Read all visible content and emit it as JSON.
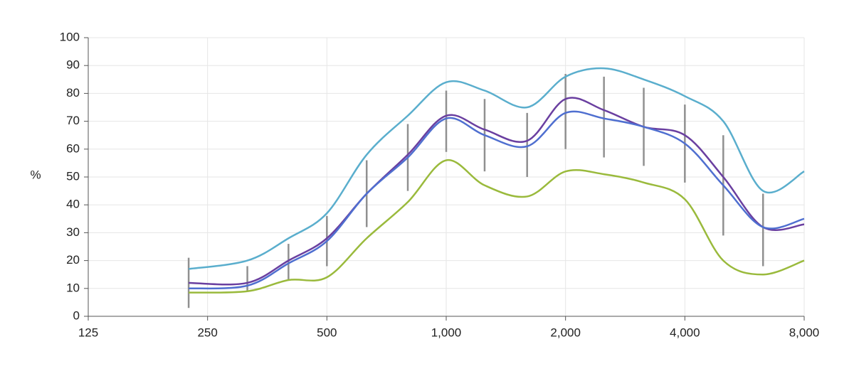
{
  "chart_data": {
    "type": "line",
    "y_label": "%",
    "x_scale": "log",
    "grid": true,
    "xlim": [
      125,
      8000
    ],
    "xticks": [
      125,
      250,
      500,
      {
        "value": 1000,
        "label": "1,000"
      },
      {
        "value": 2000,
        "label": "2,000"
      },
      {
        "value": 4000,
        "label": "4,000"
      },
      {
        "value": 8000,
        "label": "8,000"
      }
    ],
    "ylim": [
      0,
      100
    ],
    "yticks": [
      0,
      10,
      20,
      30,
      40,
      50,
      60,
      70,
      80,
      90,
      100
    ],
    "x": [
      224,
      315,
      400,
      500,
      630,
      800,
      1000,
      1250,
      1600,
      2000,
      2500,
      3150,
      4000,
      5000,
      6300,
      8000
    ],
    "series": [
      {
        "color": "#5aaecd",
        "values": [
          17,
          20,
          28,
          37,
          58,
          72,
          84,
          81,
          75,
          86,
          89,
          85,
          79,
          70,
          45,
          52
        ]
      },
      {
        "color": "#6a3fa0",
        "values": [
          12,
          12,
          20,
          28,
          44,
          58,
          72,
          67,
          63,
          78,
          74,
          68,
          65,
          50,
          32,
          33
        ]
      },
      {
        "color": "#4f6fd0",
        "values": [
          10,
          11,
          19,
          27,
          44,
          57,
          71,
          65,
          61,
          73,
          71,
          68,
          62,
          47,
          32,
          35
        ]
      },
      {
        "color": "#9aba3c",
        "values": [
          8.5,
          9,
          13,
          14,
          28,
          41,
          56,
          47,
          43,
          52,
          51,
          48,
          42,
          20,
          15,
          20
        ]
      }
    ],
    "error_bars": {
      "color": "#909090",
      "x": [
        224,
        315,
        400,
        500,
        630,
        800,
        1000,
        1250,
        1600,
        2000,
        2500,
        3150,
        4000,
        5000,
        6300
      ],
      "low": [
        3,
        9,
        13,
        18,
        32,
        45,
        59,
        52,
        50,
        60,
        57,
        54,
        48,
        29,
        18
      ],
      "high": [
        21,
        18,
        26,
        36,
        56,
        69,
        81,
        78,
        73,
        87,
        86,
        82,
        76,
        65,
        44
      ]
    }
  }
}
